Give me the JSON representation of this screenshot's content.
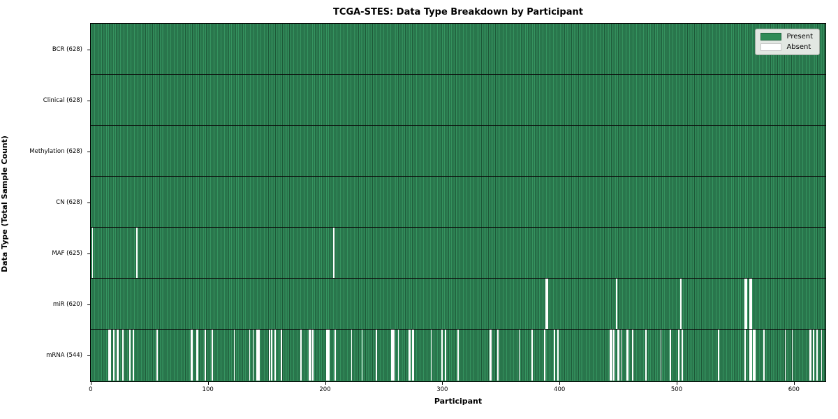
{
  "title": "TCGA-STES: Data Type Breakdown by Participant",
  "xlabel": "Participant",
  "ylabel": "Data Type (Total Sample Count)",
  "legend": {
    "present_label": "Present",
    "absent_label": "Absent",
    "position": "upper right"
  },
  "colors": {
    "present": "#2f8b57",
    "present_edge": "#1d5838",
    "absent": "#ffffff",
    "legend_bg": "#e2e7e2"
  },
  "chart_data": {
    "type": "heatmap",
    "title": "TCGA-STES: Data Type Breakdown by Participant",
    "xlabel": "Participant",
    "ylabel": "Data Type (Total Sample Count)",
    "n_participants": 628,
    "x_ticks": [
      0,
      100,
      200,
      300,
      400,
      500,
      600
    ],
    "xlim": [
      0,
      628
    ],
    "grid": false,
    "legend_entries": [
      "Present",
      "Absent"
    ],
    "legend_position": "upper right",
    "rows": [
      {
        "label": "BCR (628)",
        "data_type": "BCR",
        "present_count": 628,
        "absent_count": 0,
        "absent_participants": []
      },
      {
        "label": "Clinical (628)",
        "data_type": "Clinical",
        "present_count": 628,
        "absent_count": 0,
        "absent_participants": []
      },
      {
        "label": "Methylation (628)",
        "data_type": "Methylation",
        "present_count": 628,
        "absent_count": 0,
        "absent_participants": []
      },
      {
        "label": "CN (628)",
        "data_type": "CN",
        "present_count": 628,
        "absent_count": 0,
        "absent_participants": []
      },
      {
        "label": "MAF (625)",
        "data_type": "MAF",
        "present_count": 625,
        "absent_count": 3,
        "absent_participants": [
          1,
          39,
          207
        ]
      },
      {
        "label": "miR (620)",
        "data_type": "miR",
        "present_count": 620,
        "absent_count": 8,
        "absent_participants": [
          388,
          389,
          448,
          503,
          558,
          559,
          562,
          563
        ]
      },
      {
        "label": "mRNA (544)",
        "data_type": "mRNA",
        "present_count": 544,
        "absent_count": 84,
        "absent_participants": [
          15,
          16,
          19,
          22,
          23,
          27,
          33,
          36,
          56,
          85,
          86,
          90,
          91,
          97,
          103,
          122,
          135,
          138,
          141,
          142,
          143,
          152,
          154,
          157,
          162,
          179,
          186,
          187,
          189,
          201,
          202,
          203,
          208,
          222,
          231,
          243,
          256,
          257,
          258,
          262,
          271,
          272,
          274,
          275,
          290,
          299,
          302,
          313,
          340,
          341,
          347,
          365,
          376,
          387,
          395,
          398,
          443,
          444,
          446,
          449,
          450,
          452,
          457,
          458,
          462,
          473,
          486,
          494,
          501,
          504,
          535,
          558,
          562,
          563,
          565,
          566,
          574,
          592,
          598,
          613,
          614,
          616,
          619,
          623
        ]
      }
    ]
  }
}
